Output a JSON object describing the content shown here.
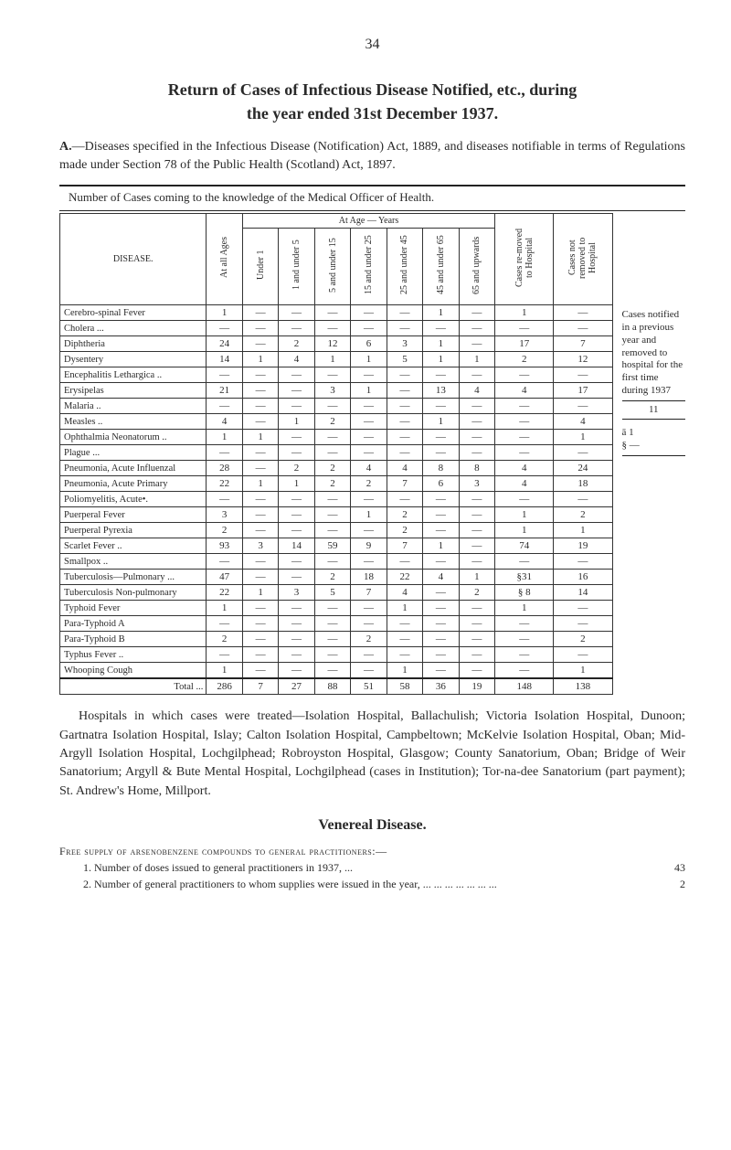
{
  "page_number": "34",
  "title": "Return of Cases of Infectious Disease Notified, etc., during",
  "subtitle": "the year ended 31st December 1937.",
  "section_a_lead": "A.",
  "section_a_text": "—Diseases specified in the Infectious Disease (Notification) Act, 1889, and diseases notifiable in terms of Regulations made under Section 78 of the Public Health (Scotland) Act, 1897.",
  "table_caption": "Number of Cases coming to the knowledge of the Medical Officer of Health.",
  "age_group_header": "At Age — Years",
  "columns": {
    "disease": "DISEASE.",
    "at_all": "At all Ages",
    "u1": "Under 1",
    "a1_5": "1 and under 5",
    "a5_15": "5 and under 15",
    "a15_25": "15 and under 25",
    "a25_45": "25 and under 45",
    "a45_65": "45 and under 65",
    "a65_up": "65 and upwards",
    "removed": "Cases re-moved to Hospital",
    "not_removed": "Cases not removed to Hospital"
  },
  "rows": [
    {
      "name": "Cerebro-spinal Fever",
      "cells": [
        "1",
        "—",
        "—",
        "—",
        "—",
        "—",
        "1",
        "—",
        "1",
        "—"
      ]
    },
    {
      "name": "Cholera ...",
      "cells": [
        "—",
        "—",
        "—",
        "—",
        "—",
        "—",
        "—",
        "—",
        "—",
        "—"
      ]
    },
    {
      "name": "Diphtheria",
      "cells": [
        "24",
        "—",
        "2",
        "12",
        "6",
        "3",
        "1",
        "—",
        "17",
        "7"
      ]
    },
    {
      "name": "Dysentery",
      "cells": [
        "14",
        "1",
        "4",
        "1",
        "1",
        "5",
        "1",
        "1",
        "2",
        "12"
      ]
    },
    {
      "name": "Encephalitis Lethargica ..",
      "cells": [
        "—",
        "—",
        "—",
        "—",
        "—",
        "—",
        "—",
        "—",
        "—",
        "—"
      ]
    },
    {
      "name": "Erysipelas",
      "cells": [
        "21",
        "—",
        "—",
        "3",
        "1",
        "—",
        "13",
        "4",
        "4",
        "17"
      ]
    },
    {
      "name": "Malaria ..",
      "cells": [
        "—",
        "—",
        "—",
        "—",
        "—",
        "—",
        "—",
        "—",
        "—",
        "—"
      ]
    },
    {
      "name": "Measles ..",
      "cells": [
        "4",
        "—",
        "1",
        "2",
        "—",
        "—",
        "1",
        "—",
        "—",
        "4"
      ]
    },
    {
      "name": "Ophthalmia Neonatorum ..",
      "cells": [
        "1",
        "1",
        "—",
        "—",
        "—",
        "—",
        "—",
        "—",
        "—",
        "1"
      ]
    },
    {
      "name": "Plague ...",
      "cells": [
        "—",
        "—",
        "—",
        "—",
        "—",
        "—",
        "—",
        "—",
        "—",
        "—"
      ]
    },
    {
      "name": "Pneumonia, Acute Influenzal",
      "cells": [
        "28",
        "—",
        "2",
        "2",
        "4",
        "4",
        "8",
        "8",
        "4",
        "24"
      ]
    },
    {
      "name": "Pneumonia, Acute Primary",
      "cells": [
        "22",
        "1",
        "1",
        "2",
        "2",
        "7",
        "6",
        "3",
        "4",
        "18"
      ]
    },
    {
      "name": "Poliomyelitis, Acute•.",
      "cells": [
        "—",
        "—",
        "—",
        "—",
        "—",
        "—",
        "—",
        "—",
        "—",
        "—"
      ]
    },
    {
      "name": "Puerperal Fever",
      "cells": [
        "3",
        "—",
        "—",
        "—",
        "1",
        "2",
        "—",
        "—",
        "1",
        "2"
      ]
    },
    {
      "name": "Puerperal Pyrexia",
      "cells": [
        "2",
        "—",
        "—",
        "—",
        "—",
        "2",
        "—",
        "—",
        "1",
        "1"
      ]
    },
    {
      "name": "Scarlet Fever ..",
      "cells": [
        "93",
        "3",
        "14",
        "59",
        "9",
        "7",
        "1",
        "—",
        "74",
        "19"
      ]
    },
    {
      "name": "Smallpox ..",
      "cells": [
        "—",
        "—",
        "—",
        "—",
        "—",
        "—",
        "—",
        "—",
        "—",
        "—"
      ]
    },
    {
      "name": "Tuberculosis—Pulmonary ...",
      "cells": [
        "47",
        "—",
        "—",
        "2",
        "18",
        "22",
        "4",
        "1",
        "§31",
        "16"
      ]
    },
    {
      "name": "Tuberculosis Non-pulmonary",
      "cells": [
        "22",
        "1",
        "3",
        "5",
        "7",
        "4",
        "—",
        "2",
        "§ 8",
        "14"
      ]
    },
    {
      "name": "Typhoid Fever",
      "cells": [
        "1",
        "—",
        "—",
        "—",
        "—",
        "1",
        "—",
        "—",
        "1",
        "—"
      ]
    },
    {
      "name": "Para-Typhoid A",
      "cells": [
        "—",
        "—",
        "—",
        "—",
        "—",
        "—",
        "—",
        "—",
        "—",
        "—"
      ]
    },
    {
      "name": "Para-Typhoid B",
      "cells": [
        "2",
        "—",
        "—",
        "—",
        "2",
        "—",
        "—",
        "—",
        "—",
        "2"
      ]
    },
    {
      "name": "Typhus Fever ..",
      "cells": [
        "—",
        "—",
        "—",
        "—",
        "—",
        "—",
        "—",
        "—",
        "—",
        "—"
      ]
    },
    {
      "name": "Whooping Cough",
      "cells": [
        "1",
        "—",
        "—",
        "—",
        "—",
        "1",
        "—",
        "—",
        "—",
        "1"
      ]
    }
  ],
  "total_row": {
    "name": "Total ...",
    "cells": [
      "286",
      "7",
      "27",
      "88",
      "51",
      "58",
      "36",
      "19",
      "148",
      "138"
    ]
  },
  "side_notes": {
    "block1": "Cases notified in a previous year and removed to hospital for the first time during 1937",
    "block1_num": "11",
    "block2a": "ā 1",
    "block2b": "§ —"
  },
  "body_para": "Hospitals in which cases were treated—Isolation Hospital, Ballachulish; Victoria Isolation Hospital, Dunoon; Gartnatra Isolation Hospital, Islay; Calton Isolation Hospital, Campbeltown; McKelvie Isolation Hospital, Oban; Mid-Argyll Isolation Hospital, Lochgilphead; Robroyston Hospital, Glasgow; County Sanatorium, Oban; Bridge of Weir Sanatorium; Argyll & Bute Mental Hospital, Lochgilphead (cases in Institution); Tor-na-dee Sanatorium (part payment); St. Andrew's Home, Millport.",
  "vd_heading": "Venereal Disease.",
  "supply_heading": "Free supply of arsenobenzene compounds to general practitioners:—",
  "supply_rows": [
    {
      "num": "1.",
      "text": "Number of doses issued to general practitioners in 1937,",
      "dots": "...",
      "val": "43"
    },
    {
      "num": "2.",
      "text": "Number of general practitioners to whom supplies were issued in the year,",
      "dots": "... ... ... ... ... ... ...",
      "val": "2"
    }
  ]
}
